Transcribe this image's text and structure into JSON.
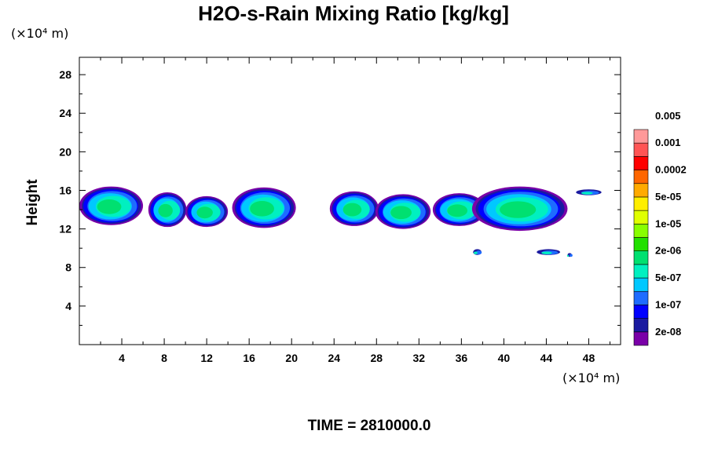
{
  "chart_data": {
    "type": "heatmap",
    "title": "H2O-s-Rain Mixing Ratio [kg/kg]",
    "ylabel": "Height",
    "x_unit": "(×10⁴ m)",
    "y_unit": "(×10⁴ m)",
    "footer": "TIME = 2810000.0",
    "xlim": [
      0,
      51
    ],
    "ylim": [
      0,
      29.8
    ],
    "x_ticks": [
      4,
      8,
      12,
      16,
      20,
      24,
      28,
      32,
      36,
      40,
      44,
      48
    ],
    "y_ticks": [
      4,
      8,
      12,
      16,
      20,
      24,
      28
    ],
    "colorbar": {
      "levels": [
        "2e-08",
        "1e-07",
        "5e-07",
        "2e-06",
        "1e-05",
        "5e-05",
        "0.0002",
        "0.001",
        "0.005"
      ],
      "colors": [
        "#7a00a8",
        "#1a1aa0",
        "#0000ff",
        "#1e6cff",
        "#00c8ff",
        "#00f0c0",
        "#00e070",
        "#22e000",
        "#88ff00",
        "#e0ff00",
        "#ffee00",
        "#ffaa00",
        "#ff6600",
        "#ff0000",
        "#ff5555",
        "#ff9999"
      ]
    },
    "features": [
      {
        "x_center": 3.0,
        "x_half_width": 3.0,
        "y_center": 14.4,
        "y_half_height": 2.0
      },
      {
        "x_center": 8.3,
        "x_half_width": 1.8,
        "y_center": 14.0,
        "y_half_height": 1.8
      },
      {
        "x_center": 12.0,
        "x_half_width": 2.0,
        "y_center": 13.8,
        "y_half_height": 1.6
      },
      {
        "x_center": 17.4,
        "x_half_width": 3.0,
        "y_center": 14.2,
        "y_half_height": 2.1
      },
      {
        "x_center": 25.9,
        "x_half_width": 2.3,
        "y_center": 14.1,
        "y_half_height": 1.8
      },
      {
        "x_center": 30.5,
        "x_half_width": 2.6,
        "y_center": 13.8,
        "y_half_height": 1.8
      },
      {
        "x_center": 35.8,
        "x_half_width": 2.5,
        "y_center": 14.0,
        "y_half_height": 1.7
      },
      {
        "x_center": 41.5,
        "x_half_width": 4.5,
        "y_center": 14.1,
        "y_half_height": 2.3
      },
      {
        "x_center": 48.0,
        "x_half_width": 1.2,
        "y_center": 15.8,
        "y_half_height": 0.3
      },
      {
        "x_center": 37.5,
        "x_half_width": 0.4,
        "y_center": 9.6,
        "y_half_height": 0.3
      },
      {
        "x_center": 44.2,
        "x_half_width": 1.1,
        "y_center": 9.6,
        "y_half_height": 0.3
      },
      {
        "x_center": 46.2,
        "x_half_width": 0.2,
        "y_center": 9.3,
        "y_half_height": 0.2
      }
    ]
  }
}
